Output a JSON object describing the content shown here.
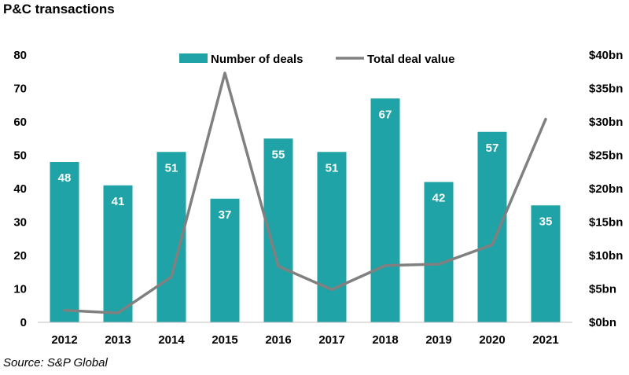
{
  "header": {
    "title": "P&C transactions"
  },
  "footer": {
    "source": "Source: S&P Global"
  },
  "chart_data": {
    "type": "bar",
    "categories": [
      "2012",
      "2013",
      "2014",
      "2015",
      "2016",
      "2017",
      "2018",
      "2019",
      "2020",
      "2021"
    ],
    "series": [
      {
        "name": "Number of deals",
        "type": "bar",
        "axis": "left",
        "color": "#1fa3a6",
        "values": [
          48,
          41,
          51,
          37,
          55,
          51,
          67,
          42,
          57,
          35
        ]
      },
      {
        "name": "Total deal value",
        "type": "line",
        "axis": "right",
        "color": "#808080",
        "values": [
          1.8,
          1.4,
          6.8,
          37.3,
          8.4,
          4.9,
          8.5,
          8.7,
          11.6,
          30.4
        ]
      }
    ],
    "y_left": {
      "ylim": [
        0,
        80
      ],
      "ticks": [
        "0",
        "10",
        "20",
        "30",
        "40",
        "50",
        "60",
        "70",
        "80"
      ]
    },
    "y_right": {
      "ylim": [
        0,
        40
      ],
      "ticks": [
        "$0bn",
        "$5bn",
        "$10bn",
        "$15bn",
        "$20bn",
        "$25bn",
        "$30bn",
        "$35bn",
        "$40bn"
      ]
    },
    "legend": "top-center",
    "grid": false
  }
}
